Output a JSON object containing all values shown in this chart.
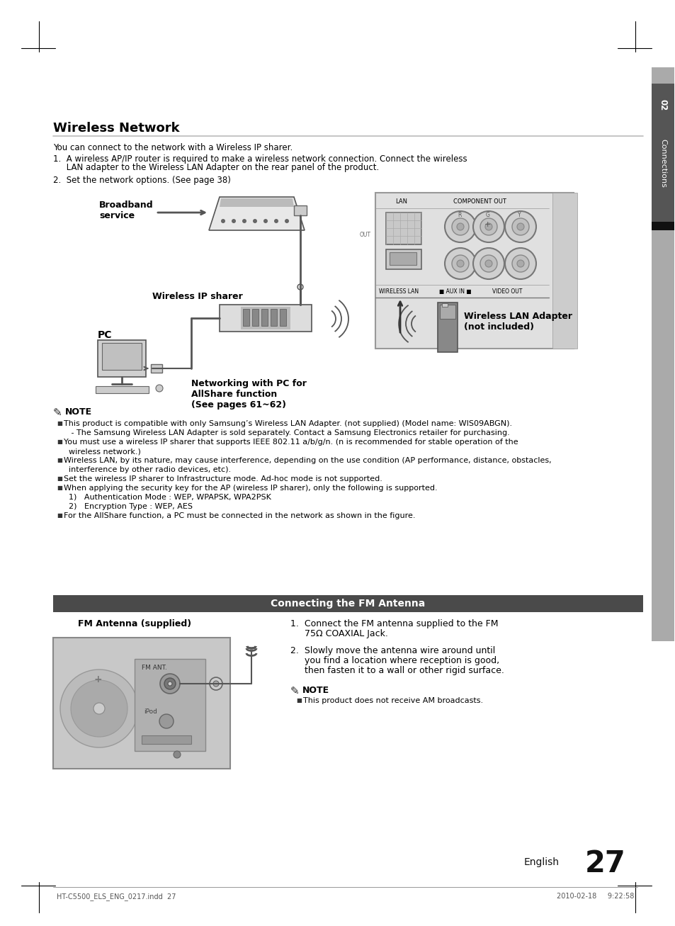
{
  "page_bg": "#ffffff",
  "sidebar_gray": "#999999",
  "sidebar_dark": "#444444",
  "wireless_network_title": "Wireless Network",
  "body_line1": "You can connect to the network with a Wireless IP sharer.",
  "body_line2a": "1.  A wireless AP/IP router is required to make a wireless network connection. Connect the wireless",
  "body_line2b": "     LAN adapter to the Wireless LAN Adapter on the rear panel of the product.",
  "body_line3": "2.  Set the network options. (See page 38)",
  "label_broadband": "Broadband\nservice",
  "label_wireless_ip": "Wireless IP sharer",
  "label_pc": "PC",
  "label_networking": "Networking with PC for\nAllShare function\n(See pages 61~62)",
  "label_wireless_lan": "Wireless LAN Adapter\n(not included)",
  "note_title": "NOTE",
  "note_bullets": [
    "This product is compatible with only Samsung’s Wireless LAN Adapter. (not supplied) (Model name: WIS09ABGN).",
    "   - The Samsung Wireless LAN Adapter is sold separately. Contact a Samsung Electronics retailer for purchasing.",
    "You must use a wireless IP sharer that supports IEEE 802.11 a/b/g/n. (n is recommended for stable operation of the",
    "  wireless network.)",
    "Wireless LAN, by its nature, may cause interference, depending on the use condition (AP performance, distance, obstacles,",
    "  interference by other radio devices, etc).",
    "Set the wireless IP sharer to Infrastructure mode. Ad-hoc mode is not supported.",
    "When applying the security key for the AP (wireless IP sharer), only the following is supported.",
    "  1)   Authentication Mode : WEP, WPAPSK, WPA2PSK",
    "  2)   Encryption Type : WEP, AES",
    "For the AllShare function, a PC must be connected in the network as shown in the figure."
  ],
  "note_bullet_flags": [
    true,
    false,
    true,
    false,
    true,
    false,
    true,
    true,
    false,
    false,
    true
  ],
  "fm_bar_title": "Connecting the FM Antenna",
  "fm_bar_color": "#4a4a4a",
  "fm_antenna_label": "FM Antenna (supplied)",
  "fm_step1a": "1.  Connect the FM antenna supplied to the FM",
  "fm_step1b": "     75Ω COAXIAL Jack.",
  "fm_step2a": "2.  Slowly move the antenna wire around until",
  "fm_step2b": "     you find a location where reception is good,",
  "fm_step2c": "     then fasten it to a wall or other rigid surface.",
  "fm_note_bullet": "This product does not receive AM broadcasts.",
  "page_number": "27",
  "page_label": "English",
  "footer_left": "HT-C5500_ELS_ENG_0217.indd  27",
  "footer_right": "2010-02-18     9:22:58",
  "chapter_num": "02",
  "chapter_text": "Connections"
}
